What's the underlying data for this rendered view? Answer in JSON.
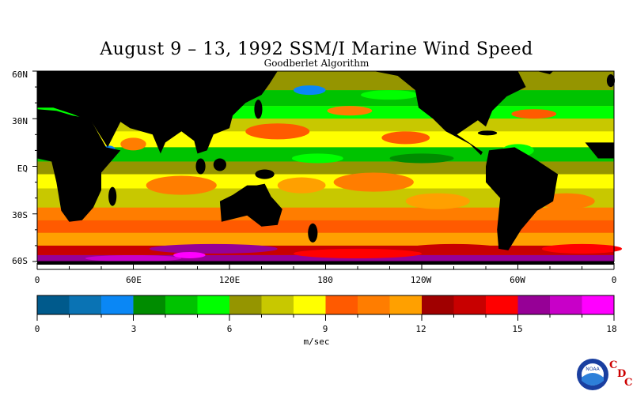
{
  "title": "August 9 – 13, 1992 SSM/I Marine Wind Speed",
  "subtitle": "Goodberlet Algorithm",
  "lat_labels": [
    "60N",
    "30N",
    "EQ",
    "30S",
    "60S"
  ],
  "lon_labels": [
    "0",
    "60E",
    "120E",
    "180",
    "120W",
    "60W",
    "0"
  ],
  "colorbar": {
    "unit": "m/sec",
    "range": [
      0,
      18
    ],
    "tick_labels": [
      "0",
      "3",
      "6",
      "9",
      "12",
      "15",
      "18"
    ],
    "colors": [
      "#005a8c",
      "#0a73b4",
      "#0a87f5",
      "#008c00",
      "#00c300",
      "#00ff00",
      "#959500",
      "#c8c800",
      "#ffff00",
      "#ff5a00",
      "#ff7d00",
      "#ffa000",
      "#a00000",
      "#c80000",
      "#ff0000",
      "#960096",
      "#c800c8",
      "#ff00ff"
    ]
  },
  "map_colors": {
    "land": "#000000",
    "ocean_background": "#c8c800"
  },
  "logo": {
    "name": "noaa-logo",
    "text": "NOAA",
    "letters": [
      "C",
      "D",
      "C"
    ]
  }
}
